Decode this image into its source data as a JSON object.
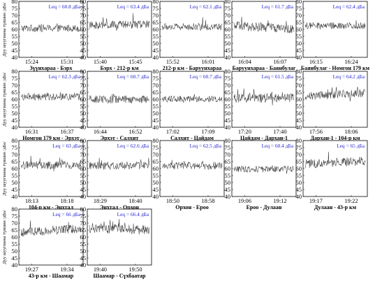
{
  "figure": {
    "ylabel": "Дуу шуугианы түвшин /дБа/"
  },
  "chart_data": [
    {
      "type": "line",
      "leq": "Leq = 60.8 дБа",
      "ticks": [
        "15:24",
        "15:31"
      ],
      "caption": "Зүүнхараа - Бэрх",
      "ylim": [
        40,
        80
      ],
      "yticks": [
        40,
        45,
        50,
        55,
        60,
        65,
        70,
        75,
        80
      ],
      "mean": 60.8,
      "spread": 2.6,
      "trend": 0
    },
    {
      "type": "line",
      "leq": "Leq = 63.4 дБа",
      "ticks": [
        "15:40",
        "15:45"
      ],
      "caption": "Бэрх - 212-р км",
      "ylim": [
        40,
        80
      ],
      "yticks": [
        40,
        45,
        50,
        55,
        60,
        65,
        70,
        75,
        80
      ],
      "mean": 63.2,
      "spread": 3,
      "trend": 1
    },
    {
      "type": "line",
      "leq": "Leq = 62.1 дБа",
      "ticks": [
        "15:52",
        "16:01"
      ],
      "caption": "212-р км - Баруунхараа",
      "ylim": [
        40,
        80
      ],
      "yticks": [
        40,
        45,
        50,
        55,
        60,
        65,
        70,
        75,
        80
      ],
      "mean": 61.8,
      "spread": 2.6,
      "trend": 0
    },
    {
      "type": "line",
      "leq": "Leq = 61.7 дБа",
      "ticks": [
        "16:04",
        "16:07"
      ],
      "caption": "Баруунхараа - Баянбулаг",
      "ylim": [
        40,
        80
      ],
      "yticks": [
        40,
        45,
        50,
        55,
        60,
        65,
        70,
        75,
        80
      ],
      "mean": 61.4,
      "spread": 3.2,
      "trend": -2
    },
    {
      "type": "line",
      "leq": "Leq = 62.4 дБа",
      "ticks": [
        "16:15",
        "16:24"
      ],
      "caption": "Баянбулаг - Номгон 179 км",
      "ylim": [
        40,
        80
      ],
      "yticks": [
        40,
        45,
        50,
        55,
        60,
        65,
        70,
        75,
        80
      ],
      "mean": 62.6,
      "spread": 2.4,
      "trend": 0
    },
    {
      "type": "line",
      "leq": "Leq = 62.3 дБа",
      "ticks": [
        "16:31",
        "16:37"
      ],
      "caption": "Номгон 179 км - Эрхэт",
      "ylim": [
        40,
        80
      ],
      "yticks": [
        40,
        45,
        50,
        55,
        60,
        65,
        70,
        75,
        80
      ],
      "mean": 61.8,
      "spread": 2.6,
      "trend": 0
    },
    {
      "type": "line",
      "leq": "Leq = 60.7 дБа",
      "ticks": [
        "16:44",
        "16:52"
      ],
      "caption": "Эрхэт - Салхит",
      "ylim": [
        40,
        80
      ],
      "yticks": [
        40,
        45,
        50,
        55,
        60,
        65,
        70,
        75,
        80
      ],
      "mean": 60,
      "spread": 2.8,
      "trend": 0
    },
    {
      "type": "line",
      "leq": "Leq = 60.7 дБа",
      "ticks": [
        "17:02",
        "17:09"
      ],
      "caption": "Салхит - Цайдам",
      "ylim": [
        40,
        80
      ],
      "yticks": [
        40,
        45,
        50,
        55,
        60,
        65,
        70,
        75,
        80
      ],
      "mean": 60.2,
      "spread": 2.2,
      "trend": 0
    },
    {
      "type": "line",
      "leq": "Leq = 61.5 дБа",
      "ticks": [
        "17:20",
        "17:40"
      ],
      "caption": "Цайдам - Дархан-1",
      "ylim": [
        40,
        80
      ],
      "yticks": [
        40,
        45,
        50,
        55,
        60,
        65,
        70,
        75,
        80
      ],
      "mean": 61,
      "spread": 3.4,
      "trend": 0
    },
    {
      "type": "line",
      "leq": "Leq = 64.2 дБа",
      "ticks": [
        "17:56",
        "18:06"
      ],
      "caption": "Дархан-1 - 104-р км",
      "ylim": [
        40,
        80
      ],
      "yticks": [
        40,
        45,
        50,
        55,
        60,
        65,
        70,
        75,
        80
      ],
      "mean": 63.4,
      "spread": 3,
      "trend": 2
    },
    {
      "type": "line",
      "leq": "Leq = 63 дБа",
      "ticks": [
        "18:13",
        "18:18"
      ],
      "caption": "104-р км - Энхтал",
      "ylim": [
        40,
        80
      ],
      "yticks": [
        40,
        45,
        50,
        55,
        60,
        65,
        70,
        75,
        80
      ],
      "mean": 62.4,
      "spread": 2.8,
      "trend": 0
    },
    {
      "type": "line",
      "leq": "Leq = 62.6 дБа",
      "ticks": [
        "18:29",
        "18:40"
      ],
      "caption": "Энхтал - Орхон",
      "ylim": [
        40,
        80
      ],
      "yticks": [
        40,
        45,
        50,
        55,
        60,
        65,
        70,
        75,
        80
      ],
      "mean": 62,
      "spread": 2.8,
      "trend": 0
    },
    {
      "type": "line",
      "leq": "Leq = 62.5 дБа",
      "ticks": [
        "18:50",
        "18:58"
      ],
      "caption": "Орхон - Ероо",
      "ylim": [
        40,
        80
      ],
      "yticks": [
        40,
        45,
        50,
        55,
        60,
        65,
        70,
        75,
        80
      ],
      "mean": 62,
      "spread": 2.6,
      "trend": 0
    },
    {
      "type": "line",
      "leq": "Leq = 60.4 дБа",
      "ticks": [
        "19:06",
        "19:12"
      ],
      "caption": "Ероо - Дулаан",
      "ylim": [
        40,
        80
      ],
      "yticks": [
        40,
        45,
        50,
        55,
        60,
        65,
        70,
        75,
        80
      ],
      "mean": 59.6,
      "spread": 2.4,
      "trend": 0
    },
    {
      "type": "line",
      "leq": "Leq = 65 дБа",
      "ticks": [
        "19:17",
        "19:22"
      ],
      "caption": "Дулаан - 43-р км",
      "ylim": [
        40,
        80
      ],
      "yticks": [
        40,
        45,
        50,
        55,
        60,
        65,
        70,
        75,
        80
      ],
      "mean": 64.4,
      "spread": 3.2,
      "trend": 2
    },
    {
      "type": "line",
      "leq": "Leq = 66 дБа",
      "ticks": [
        "19:27",
        "19:34"
      ],
      "caption": "43-р км - Шаамар",
      "ylim": [
        40,
        80
      ],
      "yticks": [
        40,
        45,
        50,
        55,
        60,
        65,
        70,
        75,
        80
      ],
      "mean": 64.6,
      "spread": 3.2,
      "trend": 3
    },
    {
      "type": "line",
      "leq": "Leq = 66.4 дБа",
      "ticks": [
        "19:40",
        "19:50"
      ],
      "caption": "Шаамар - Сүхбаатар",
      "ylim": [
        40,
        80
      ],
      "yticks": [
        40,
        45,
        50,
        55,
        60,
        65,
        70,
        75,
        80
      ],
      "mean": 65.6,
      "spread": 3.6,
      "trend": -2
    }
  ]
}
